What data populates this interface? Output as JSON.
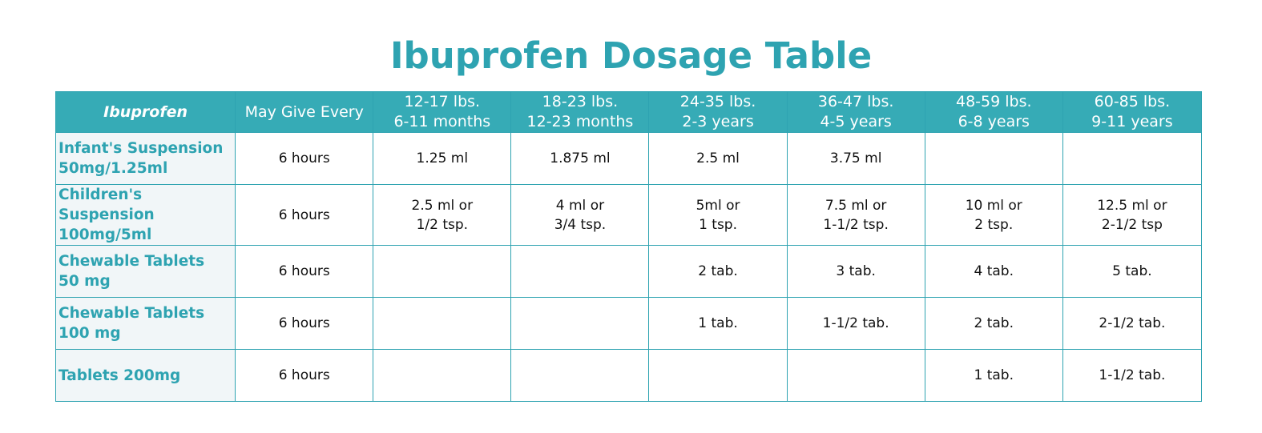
{
  "title": "Ibuprofen Dosage Table",
  "table": {
    "header": {
      "corner": "Ibuprofen",
      "frequency": "May Give Every",
      "groups": [
        {
          "weight": "12-17 lbs.",
          "age": "6-11 months"
        },
        {
          "weight": "18-23 lbs.",
          "age": "12-23 months"
        },
        {
          "weight": "24-35 lbs.",
          "age": "2-3 years"
        },
        {
          "weight": "36-47 lbs.",
          "age": "4-5 years"
        },
        {
          "weight": "48-59 lbs.",
          "age": "6-8 years"
        },
        {
          "weight": "60-85 lbs.",
          "age": "9-11 years"
        }
      ]
    },
    "rows": [
      {
        "name": [
          "Infant's Suspension",
          "50mg/1.25ml"
        ],
        "frequency": "6 hours",
        "doses": [
          [
            "1.25 ml"
          ],
          [
            "1.875 ml"
          ],
          [
            "2.5 ml"
          ],
          [
            "3.75 ml"
          ],
          [],
          []
        ]
      },
      {
        "name": [
          "Children's Suspension",
          "100mg/5ml"
        ],
        "frequency": "6 hours",
        "doses": [
          [
            "2.5 ml or",
            "1/2 tsp."
          ],
          [
            "4 ml or",
            "3/4 tsp."
          ],
          [
            "5ml or",
            "1 tsp."
          ],
          [
            "7.5 ml or",
            "1-1/2 tsp."
          ],
          [
            "10 ml or",
            "2 tsp."
          ],
          [
            "12.5 ml or",
            "2-1/2 tsp"
          ]
        ]
      },
      {
        "name": [
          "Chewable Tablets",
          "50 mg"
        ],
        "frequency": "6 hours",
        "doses": [
          [],
          [],
          [
            "2 tab."
          ],
          [
            "3 tab."
          ],
          [
            "4 tab."
          ],
          [
            "5 tab."
          ]
        ]
      },
      {
        "name": [
          "Chewable Tablets",
          "100 mg"
        ],
        "frequency": "6 hours",
        "doses": [
          [],
          [],
          [
            "1 tab."
          ],
          [
            "1-1/2 tab."
          ],
          [
            "2 tab."
          ],
          [
            "2-1/2 tab."
          ]
        ]
      },
      {
        "name": [
          "Tablets 200mg"
        ],
        "frequency": "6 hours",
        "doses": [
          [],
          [],
          [],
          [],
          [
            "1 tab."
          ],
          [
            "1-1/2 tab."
          ]
        ]
      }
    ]
  }
}
